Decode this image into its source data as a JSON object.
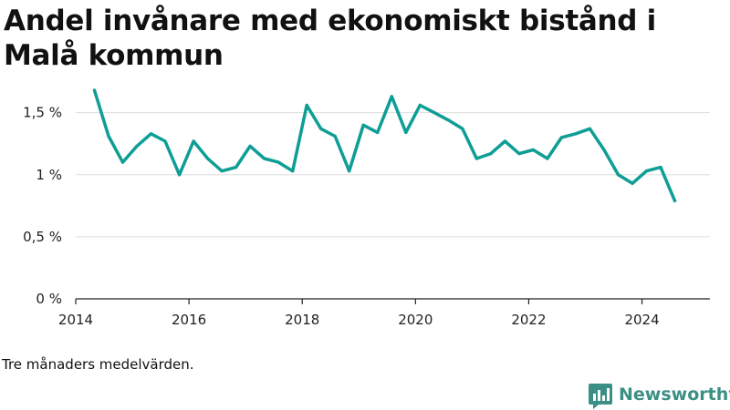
{
  "title": "Andel invånare med ekonomiskt bistånd i Malå kommun",
  "note": "Tre månaders medelvärden.",
  "brand": {
    "name": "Newsworthy",
    "icon": "bar-chart-speech-bubble-icon",
    "color": "#3b8f84"
  },
  "chart_data": {
    "type": "line",
    "title": "Andel invånare med ekonomiskt bistånd i Malå kommun",
    "xlabel": "",
    "ylabel": "",
    "xlim": [
      2014.0,
      2025.2
    ],
    "ylim": [
      0,
      1.6
    ],
    "x_ticks": [
      {
        "value": 2014,
        "label": "2014"
      },
      {
        "value": 2016,
        "label": "2016"
      },
      {
        "value": 2018,
        "label": "2018"
      },
      {
        "value": 2020,
        "label": "2020"
      },
      {
        "value": 2022,
        "label": "2022"
      },
      {
        "value": 2024,
        "label": "2024"
      }
    ],
    "y_ticks": [
      {
        "value": 0,
        "label": "0 %"
      },
      {
        "value": 0.5,
        "label": "0,5 %"
      },
      {
        "value": 1.0,
        "label": "1 %"
      },
      {
        "value": 1.5,
        "label": "1,5 %"
      }
    ],
    "grid": true,
    "series": [
      {
        "color": "#0e9e95",
        "points": [
          [
            2014.33,
            1.68
          ],
          [
            2014.58,
            1.31
          ],
          [
            2014.83,
            1.1
          ],
          [
            2015.08,
            1.23
          ],
          [
            2015.33,
            1.33
          ],
          [
            2015.58,
            1.27
          ],
          [
            2015.83,
            1.0
          ],
          [
            2016.08,
            1.27
          ],
          [
            2016.33,
            1.13
          ],
          [
            2016.58,
            1.03
          ],
          [
            2016.83,
            1.06
          ],
          [
            2017.08,
            1.23
          ],
          [
            2017.33,
            1.13
          ],
          [
            2017.58,
            1.1
          ],
          [
            2017.83,
            1.03
          ],
          [
            2018.08,
            1.56
          ],
          [
            2018.33,
            1.37
          ],
          [
            2018.58,
            1.31
          ],
          [
            2018.83,
            1.03
          ],
          [
            2019.08,
            1.4
          ],
          [
            2019.33,
            1.34
          ],
          [
            2019.58,
            1.63
          ],
          [
            2019.83,
            1.34
          ],
          [
            2020.08,
            1.56
          ],
          [
            2020.33,
            1.5
          ],
          [
            2020.58,
            1.44
          ],
          [
            2020.83,
            1.37
          ],
          [
            2021.08,
            1.13
          ],
          [
            2021.33,
            1.17
          ],
          [
            2021.58,
            1.27
          ],
          [
            2021.83,
            1.17
          ],
          [
            2022.08,
            1.2
          ],
          [
            2022.33,
            1.13
          ],
          [
            2022.58,
            1.3
          ],
          [
            2022.83,
            1.33
          ],
          [
            2023.08,
            1.37
          ],
          [
            2023.33,
            1.2
          ],
          [
            2023.58,
            1.0
          ],
          [
            2023.83,
            0.93
          ],
          [
            2024.08,
            1.03
          ],
          [
            2024.33,
            1.06
          ],
          [
            2024.58,
            0.79
          ]
        ]
      }
    ]
  }
}
